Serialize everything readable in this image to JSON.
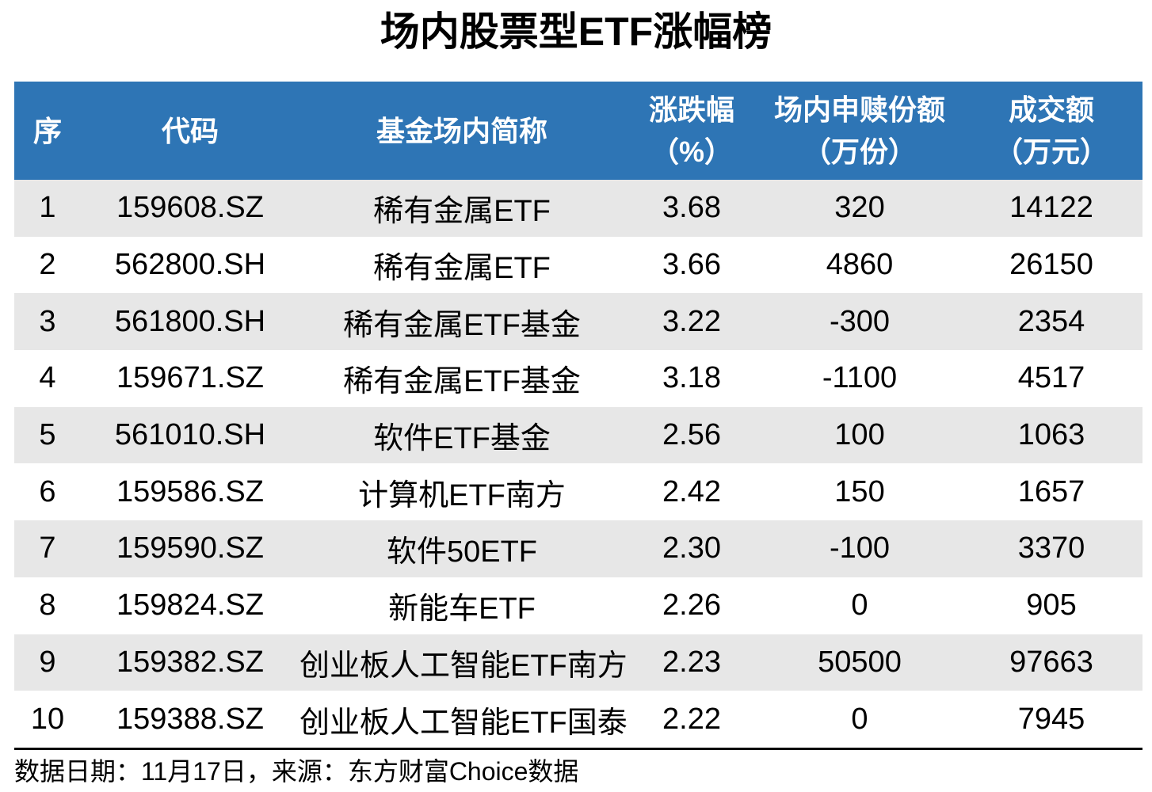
{
  "title": "场内股票型ETF涨幅榜",
  "colors": {
    "header_bg": "#2E75B5",
    "header_text": "#FFFFFF",
    "zebra_row_bg": "#E7E7E7",
    "body_text": "#000000",
    "divider": "#000000"
  },
  "chart_data": {
    "type": "table",
    "title": "场内股票型ETF涨幅榜",
    "columns": [
      {
        "label": "序",
        "unit": ""
      },
      {
        "label": "代码",
        "unit": ""
      },
      {
        "label": "基金场内简称",
        "unit": ""
      },
      {
        "label": "涨跌幅",
        "unit": "（%）"
      },
      {
        "label": "场内申赎份额",
        "unit": "（万份）"
      },
      {
        "label": "成交额",
        "unit": "（万元）"
      }
    ],
    "rows": [
      {
        "seq": "1",
        "code": "159608.SZ",
        "name": "稀有金属ETF",
        "change_pct": "3.68",
        "shares_wan": "320",
        "turnover_wan": "14122"
      },
      {
        "seq": "2",
        "code": "562800.SH",
        "name": "稀有金属ETF",
        "change_pct": "3.66",
        "shares_wan": "4860",
        "turnover_wan": "26150"
      },
      {
        "seq": "3",
        "code": "561800.SH",
        "name": "稀有金属ETF基金",
        "change_pct": "3.22",
        "shares_wan": "-300",
        "turnover_wan": "2354"
      },
      {
        "seq": "4",
        "code": "159671.SZ",
        "name": "稀有金属ETF基金",
        "change_pct": "3.18",
        "shares_wan": "-1100",
        "turnover_wan": "4517"
      },
      {
        "seq": "5",
        "code": "561010.SH",
        "name": "软件ETF基金",
        "change_pct": "2.56",
        "shares_wan": "100",
        "turnover_wan": "1063"
      },
      {
        "seq": "6",
        "code": "159586.SZ",
        "name": "计算机ETF南方",
        "change_pct": "2.42",
        "shares_wan": "150",
        "turnover_wan": "1657"
      },
      {
        "seq": "7",
        "code": "159590.SZ",
        "name": "软件50ETF",
        "change_pct": "2.30",
        "shares_wan": "-100",
        "turnover_wan": "3370"
      },
      {
        "seq": "8",
        "code": "159824.SZ",
        "name": "新能车ETF",
        "change_pct": "2.26",
        "shares_wan": "0",
        "turnover_wan": "905"
      },
      {
        "seq": "9",
        "code": "159382.SZ",
        "name": "创业板人工智能ETF南方",
        "change_pct": "2.23",
        "shares_wan": "50500",
        "turnover_wan": "97663"
      },
      {
        "seq": "10",
        "code": "159388.SZ",
        "name": "创业板人工智能ETF国泰",
        "change_pct": "2.22",
        "shares_wan": "0",
        "turnover_wan": "7945"
      }
    ]
  },
  "footer": {
    "note": "数据日期：11月17日，来源：东方财富Choice数据"
  }
}
